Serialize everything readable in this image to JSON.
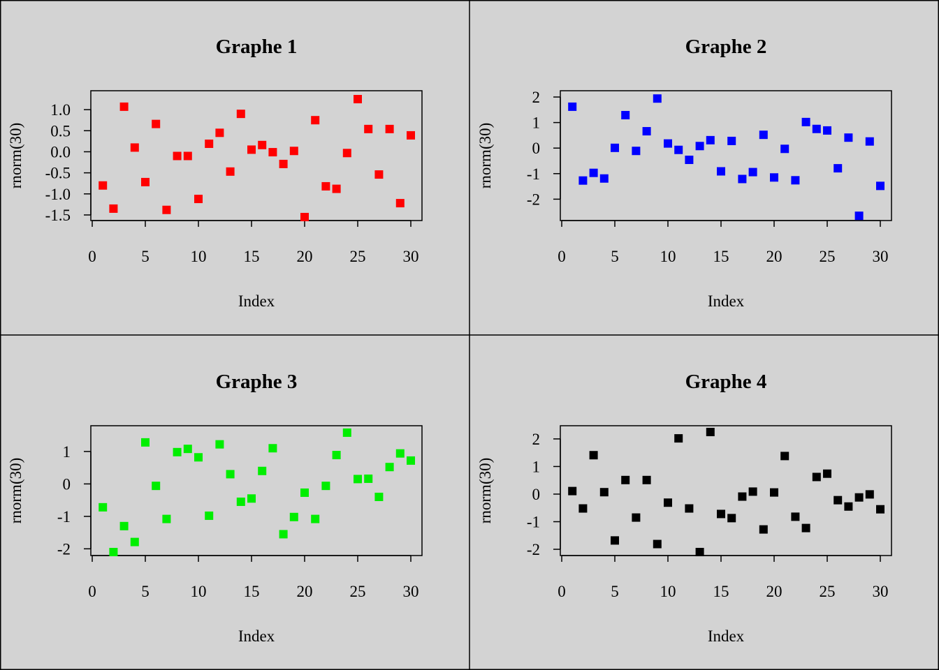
{
  "layout_grid": {
    "rows": 2,
    "cols": 2
  },
  "chart_data": [
    {
      "type": "scatter",
      "title": "Graphe 1",
      "xlabel": "Index",
      "ylabel": "rnorm(30)",
      "color": "#ff0000",
      "marker": "square",
      "xlim": [
        0,
        30
      ],
      "ylim": [
        -1.55,
        1.3
      ],
      "xticks": [
        0,
        5,
        10,
        15,
        20,
        25,
        30
      ],
      "yticks": [
        "1.0",
        "0.5",
        "0.0",
        "-0.5",
        "-1.0",
        "-1.5"
      ],
      "yticks_values": [
        1.0,
        0.5,
        0.0,
        -0.5,
        -1.0,
        -1.5
      ],
      "x": [
        1,
        2,
        3,
        4,
        5,
        6,
        7,
        8,
        9,
        10,
        11,
        12,
        13,
        14,
        15,
        16,
        17,
        18,
        19,
        20,
        21,
        22,
        23,
        24,
        25,
        26,
        27,
        28,
        29,
        30
      ],
      "y": [
        -0.8,
        -1.35,
        1.07,
        0.1,
        -0.72,
        0.66,
        -1.38,
        -0.1,
        -0.1,
        -1.12,
        0.19,
        0.45,
        -0.47,
        0.9,
        0.05,
        0.16,
        -0.01,
        -0.29,
        0.02,
        -1.55,
        0.75,
        -0.82,
        -0.88,
        -0.03,
        1.25,
        0.54,
        -0.54,
        0.54,
        -1.22,
        0.39
      ]
    },
    {
      "type": "scatter",
      "title": "Graphe 2",
      "xlabel": "Index",
      "ylabel": "rnorm(30)",
      "color": "#0000ff",
      "marker": "square",
      "xlim": [
        0,
        30
      ],
      "ylim": [
        -2.7,
        2.0
      ],
      "xticks": [
        0,
        5,
        10,
        15,
        20,
        25,
        30
      ],
      "yticks": [
        "2",
        "1",
        "0",
        "-1",
        "-2"
      ],
      "yticks_values": [
        2,
        1,
        0,
        -1,
        -2
      ],
      "x": [
        1,
        2,
        3,
        4,
        5,
        6,
        7,
        8,
        9,
        10,
        11,
        12,
        13,
        14,
        15,
        16,
        17,
        18,
        19,
        20,
        21,
        22,
        23,
        24,
        25,
        26,
        27,
        28,
        29,
        30
      ],
      "y": [
        1.62,
        -1.27,
        -0.97,
        -1.19,
        0.01,
        1.29,
        -0.11,
        0.66,
        1.94,
        0.18,
        -0.07,
        -0.46,
        0.08,
        0.31,
        -0.91,
        0.28,
        -1.21,
        -0.94,
        0.52,
        -1.15,
        -0.03,
        -1.26,
        1.02,
        0.75,
        0.69,
        -0.79,
        0.41,
        -2.65,
        0.26,
        -1.48
      ]
    },
    {
      "type": "scatter",
      "title": "Graphe 3",
      "xlabel": "Index",
      "ylabel": "rnorm(30)",
      "color": "#00ee00",
      "marker": "square",
      "xlim": [
        0,
        30
      ],
      "ylim": [
        -2.1,
        1.6
      ],
      "xticks": [
        0,
        5,
        10,
        15,
        20,
        25,
        30
      ],
      "yticks": [
        "1",
        "0",
        "-1",
        "-2"
      ],
      "yticks_values": [
        1,
        0,
        -1,
        -2
      ],
      "x": [
        1,
        2,
        3,
        4,
        5,
        6,
        7,
        8,
        9,
        10,
        11,
        12,
        13,
        14,
        15,
        16,
        17,
        18,
        19,
        20,
        21,
        22,
        23,
        24,
        25,
        26,
        27,
        28,
        29,
        30
      ],
      "y": [
        -0.72,
        -2.1,
        -1.3,
        -1.79,
        1.28,
        -0.06,
        -1.08,
        0.98,
        1.08,
        0.82,
        -0.98,
        1.22,
        0.3,
        -0.55,
        -0.45,
        0.4,
        1.1,
        -1.55,
        -1.02,
        -0.27,
        -1.08,
        -0.06,
        0.89,
        1.58,
        0.15,
        0.16,
        -0.4,
        0.52,
        0.94,
        0.72
      ]
    },
    {
      "type": "scatter",
      "title": "Graphe 4",
      "xlabel": "Index",
      "ylabel": "rnorm(30)",
      "color": "#000000",
      "marker": "square",
      "xlim": [
        0,
        30
      ],
      "ylim": [
        -2.1,
        2.25
      ],
      "xticks": [
        0,
        5,
        10,
        15,
        20,
        25,
        30
      ],
      "yticks": [
        "2",
        "1",
        "0",
        "-1",
        "-2"
      ],
      "yticks_values": [
        2,
        1,
        0,
        -1,
        -2
      ],
      "x": [
        1,
        2,
        3,
        4,
        5,
        6,
        7,
        8,
        9,
        10,
        11,
        12,
        13,
        14,
        15,
        16,
        17,
        18,
        19,
        20,
        21,
        22,
        23,
        24,
        25,
        26,
        27,
        28,
        29,
        30
      ],
      "y": [
        0.11,
        -0.52,
        1.41,
        0.07,
        -1.68,
        0.51,
        -0.85,
        0.51,
        -1.81,
        -0.31,
        2.02,
        -0.52,
        -2.1,
        2.25,
        -0.72,
        -0.87,
        -0.09,
        0.09,
        -1.28,
        0.06,
        1.38,
        -0.82,
        -1.23,
        0.62,
        0.74,
        -0.22,
        -0.45,
        -0.12,
        -0.01,
        -0.55
      ]
    }
  ]
}
